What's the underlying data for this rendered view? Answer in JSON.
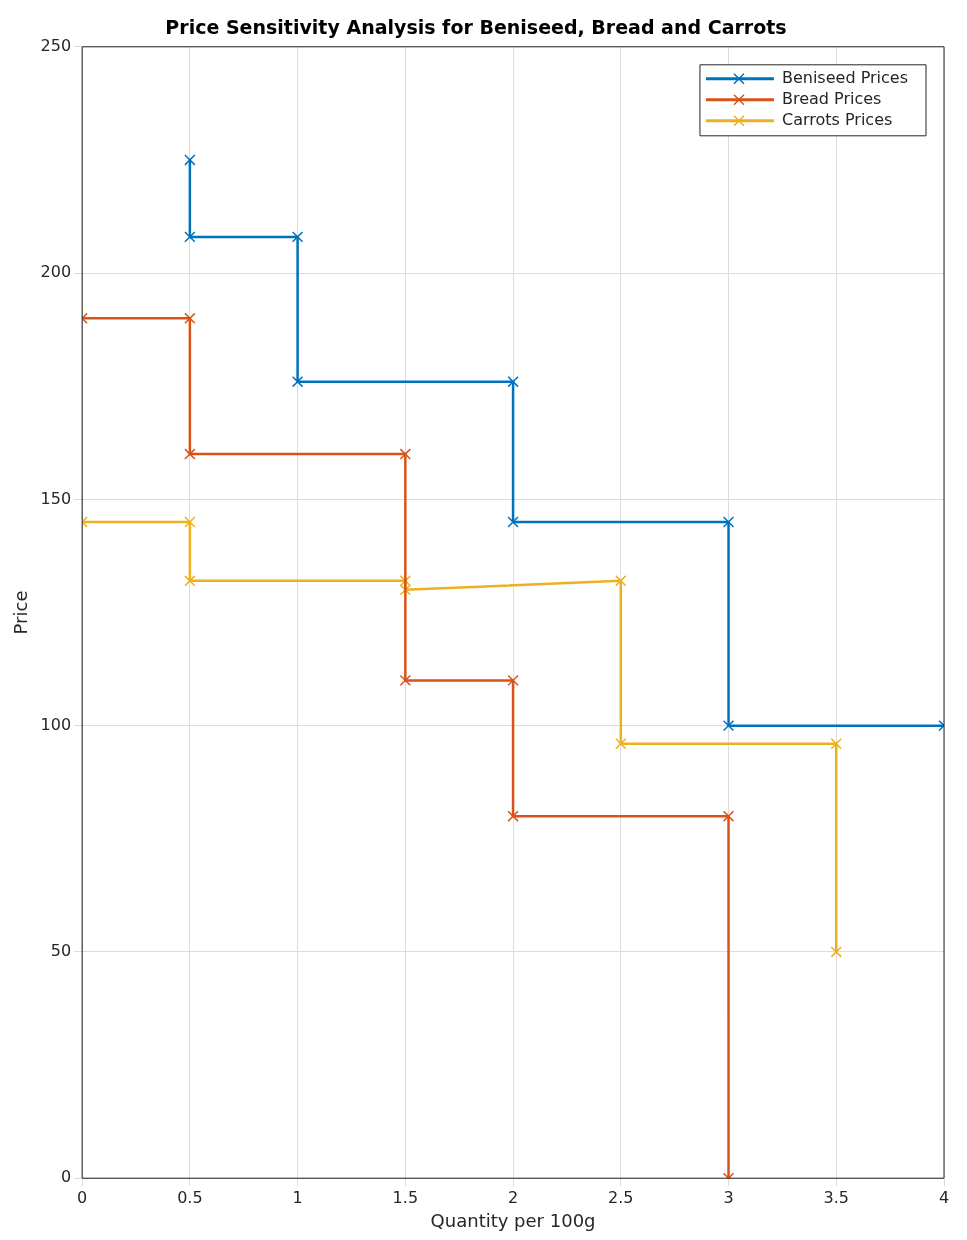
{
  "chart_data": {
    "type": "line",
    "title": "Price Sensitivity Analysis for Beniseed, Bread and Carrots",
    "xlabel": "Quantity per 100g",
    "ylabel": "Price",
    "series": [
      {
        "name": "Beniseed Prices",
        "color": "#0072bd",
        "x": [
          0.5,
          0.5,
          1,
          1,
          2,
          2,
          3,
          3,
          4
        ],
        "values": [
          225,
          208,
          208,
          176,
          176,
          145,
          145,
          100,
          100
        ]
      },
      {
        "name": "Bread Prices",
        "color": "#d95319",
        "x": [
          0,
          0.5,
          0.5,
          1.5,
          1.5,
          2,
          2,
          3,
          3
        ],
        "values": [
          190,
          190,
          160,
          160,
          110,
          110,
          80,
          80,
          0
        ]
      },
      {
        "name": "Carrots Prices",
        "color": "#edb120",
        "x": [
          0,
          0.5,
          0.5,
          1.5,
          1.5,
          2.5,
          2.5,
          3.5,
          3.5
        ],
        "values": [
          145,
          145,
          132,
          132,
          130,
          132,
          96,
          96,
          50
        ]
      }
    ],
    "xlim": [
      0,
      4
    ],
    "xticks": [
      0,
      0.5,
      1,
      1.5,
      2,
      2.5,
      3,
      3.5,
      4
    ],
    "ylim": [
      0,
      250
    ],
    "yticks": [
      0,
      50,
      100,
      150,
      200,
      250
    ],
    "grid": true,
    "legend": "top right",
    "marker": "cross",
    "line_style": "solid"
  }
}
